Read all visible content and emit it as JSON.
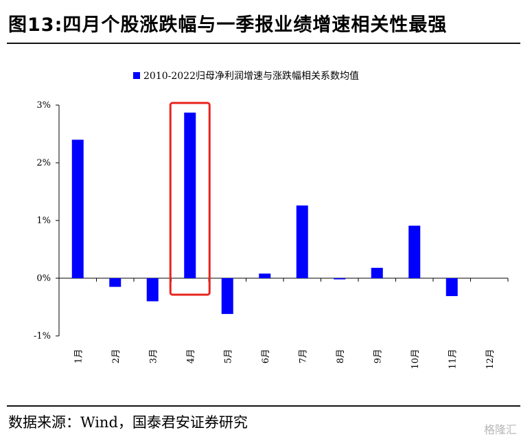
{
  "header": {
    "title": "图13:四月个股涨跌幅与一季报业绩增速相关性最强"
  },
  "footer": {
    "source": "数据来源：Wind，国泰君安证券研究",
    "watermark": "格隆汇"
  },
  "chart_data": {
    "type": "bar",
    "categories": [
      "1月",
      "2月",
      "3月",
      "4月",
      "5月",
      "6月",
      "7月",
      "8月",
      "9月",
      "10月",
      "11月",
      "12月"
    ],
    "series": [
      {
        "name": "2010-2022归母净利润增速与涨跌幅相关系数均值",
        "values": [
          2.4,
          -0.15,
          -0.4,
          2.87,
          -0.62,
          0.08,
          1.26,
          -0.02,
          0.18,
          0.91,
          -0.31,
          0.0
        ],
        "color": "#0000ff"
      }
    ],
    "yticks": [
      "3%",
      "2%",
      "1%",
      "0%",
      "-1%"
    ],
    "ytick_values": [
      3,
      2,
      1,
      0,
      -1
    ],
    "ylim": [
      -1,
      3
    ],
    "unit": "%",
    "legend_position": "top-center",
    "grid": false,
    "highlight": {
      "category": "4月",
      "color": "#e8231e"
    }
  }
}
